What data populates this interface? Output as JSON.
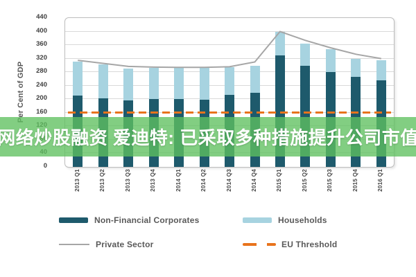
{
  "banner": {
    "text": "网络炒股融资 爱迪特: 已采取多种措施提升公司市值",
    "bg_color": "#5FC05F",
    "text_color": "#FFFFFF"
  },
  "chart_data": {
    "type": "bar",
    "subtype": "stacked-bar-with-lines",
    "title": "",
    "xlabel": "",
    "ylabel": "Per Cent of GDP",
    "ylim": [
      0,
      440
    ],
    "y_ticks": [
      0,
      40,
      80,
      120,
      160,
      200,
      240,
      280,
      320,
      360,
      400,
      440
    ],
    "grid": true,
    "legend_position": "bottom",
    "categories": [
      "2013 Q1",
      "2013 Q2",
      "2013 Q3",
      "2013 Q4",
      "2014 Q1",
      "2014 Q2",
      "2014 Q3",
      "2014 Q4",
      "2015 Q1",
      "2015 Q2",
      "2015 Q3",
      "2015 Q4",
      "2016 Q1"
    ],
    "series": [
      {
        "name": "Non-Financial Corporates",
        "type": "bar",
        "stacked": true,
        "color": "#1E5A6C",
        "values": [
          210,
          202,
          196,
          200,
          200,
          198,
          212,
          218,
          330,
          298,
          280,
          266,
          256
        ]
      },
      {
        "name": "Households",
        "type": "bar",
        "stacked": true,
        "color": "#A7D3E0",
        "values": [
          102,
          100,
          95,
          93,
          93,
          96,
          83,
          80,
          70,
          67,
          68,
          53,
          60
        ]
      },
      {
        "name": "Private Sector",
        "type": "line",
        "color": "#A6A6A6",
        "values": [
          315,
          306,
          297,
          295,
          294,
          294,
          296,
          310,
          400,
          374,
          352,
          333,
          320
        ]
      },
      {
        "name": "EU Threshold",
        "type": "dashed-line",
        "color": "#E8731C",
        "threshold_value": 160
      }
    ],
    "colors": {
      "gridline": "#D9D9D9",
      "plot_border": "#BDBDBD",
      "tick_text": "#3F3F3F",
      "legend_text": "#595959"
    }
  }
}
